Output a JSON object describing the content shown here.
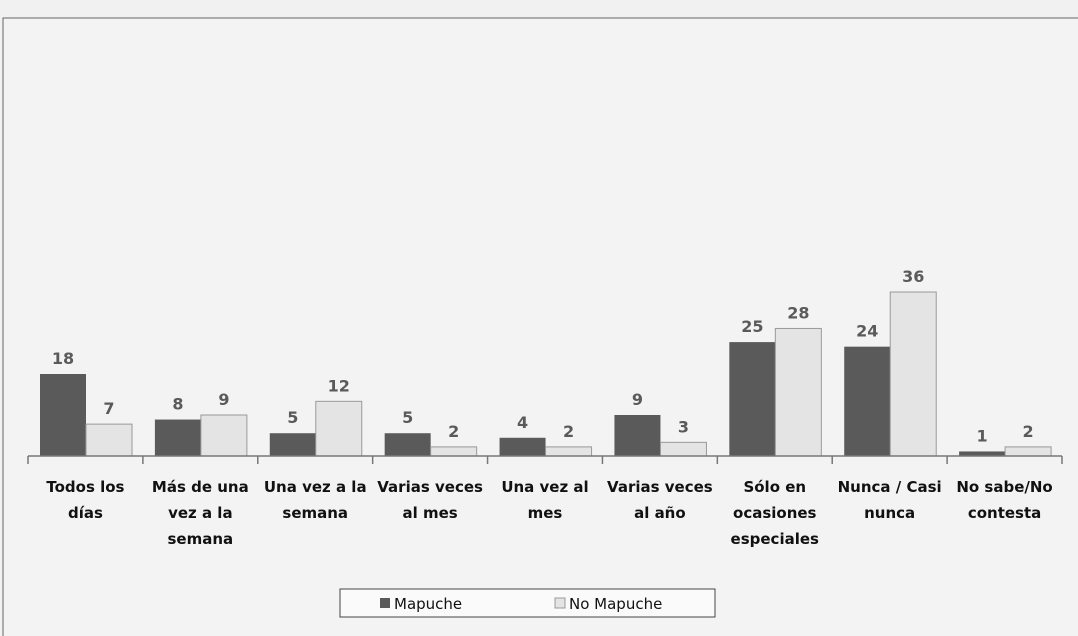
{
  "chart_data": {
    "type": "bar",
    "categories": [
      "Todos los días",
      "Más de una vez a la semana",
      "Una vez a la semana",
      "Varias veces al mes",
      "Una vez al mes",
      "Varias veces al año",
      "Sólo en ocasiones especiales",
      "Nunca / Casi nunca",
      "No sabe/No contesta"
    ],
    "series": [
      {
        "name": "Mapuche",
        "color": "#5a5a5a",
        "values": [
          18,
          8,
          5,
          5,
          4,
          9,
          25,
          24,
          1
        ]
      },
      {
        "name": "No Mapuche",
        "color": "#e4e4e4",
        "values": [
          7,
          9,
          12,
          2,
          2,
          3,
          28,
          36,
          2
        ]
      }
    ],
    "ylim": [
      0,
      36
    ],
    "legend": "bottom"
  }
}
